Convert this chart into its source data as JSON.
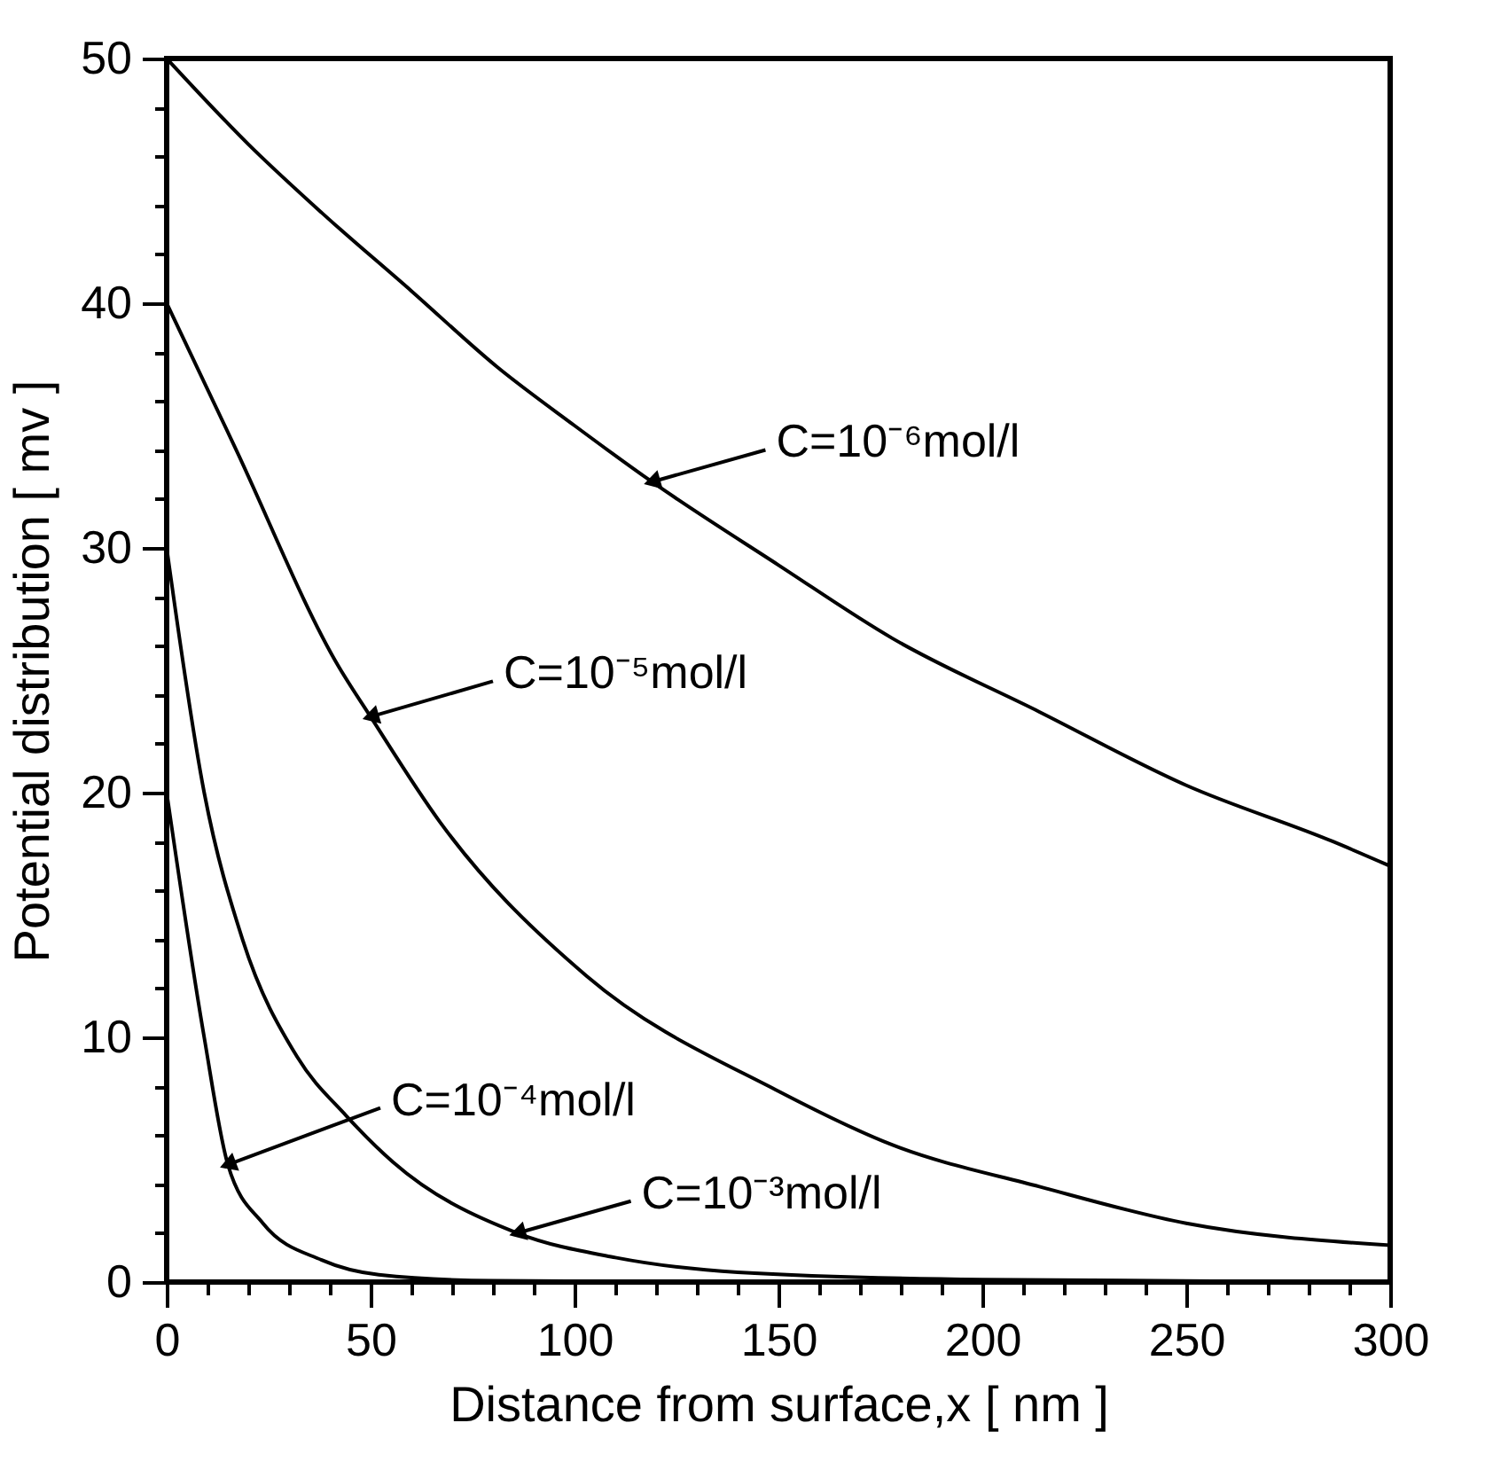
{
  "chart_data": {
    "type": "line",
    "xlabel": "Distance from surface,x [ nm ]",
    "ylabel": "Potential distribution [ mv ]",
    "xlim": [
      0,
      300
    ],
    "ylim": [
      0,
      50
    ],
    "xticks": [
      0,
      {
        "value": 10,
        "label": null
      },
      {
        "value": 20,
        "label": null
      },
      {
        "value": 30,
        "label": null
      },
      {
        "value": 40,
        "label": null
      },
      50,
      {
        "value": 60,
        "label": null
      },
      {
        "value": 70,
        "label": null
      },
      {
        "value": 80,
        "label": null
      },
      {
        "value": 90,
        "label": null
      },
      100,
      {
        "value": 110,
        "label": null
      },
      {
        "value": 120,
        "label": null
      },
      {
        "value": 130,
        "label": null
      },
      {
        "value": 140,
        "label": null
      },
      150,
      {
        "value": 160,
        "label": null
      },
      {
        "value": 170,
        "label": null
      },
      {
        "value": 180,
        "label": null
      },
      {
        "value": 190,
        "label": null
      },
      200,
      {
        "value": 210,
        "label": null
      },
      {
        "value": 220,
        "label": null
      },
      {
        "value": 230,
        "label": null
      },
      {
        "value": 240,
        "label": null
      },
      250,
      {
        "value": 260,
        "label": null
      },
      {
        "value": 270,
        "label": null
      },
      {
        "value": 280,
        "label": null
      },
      {
        "value": 290,
        "label": null
      },
      300
    ],
    "yticks": [
      0,
      {
        "value": 2,
        "label": null
      },
      {
        "value": 4,
        "label": null
      },
      {
        "value": 6,
        "label": null
      },
      {
        "value": 8,
        "label": null
      },
      10,
      {
        "value": 12,
        "label": null
      },
      {
        "value": 14,
        "label": null
      },
      {
        "value": 16,
        "label": null
      },
      {
        "value": 18,
        "label": null
      },
      20,
      {
        "value": 22,
        "label": null
      },
      {
        "value": 24,
        "label": null
      },
      {
        "value": 26,
        "label": null
      },
      {
        "value": 28,
        "label": null
      },
      30,
      {
        "value": 32,
        "label": null
      },
      {
        "value": 34,
        "label": null
      },
      {
        "value": 36,
        "label": null
      },
      {
        "value": 38,
        "label": null
      },
      40,
      {
        "value": 42,
        "label": null
      },
      {
        "value": 44,
        "label": null
      },
      {
        "value": 46,
        "label": null
      },
      {
        "value": 48,
        "label": null
      },
      50
    ],
    "grid": false,
    "marker": "none",
    "line_style": "solid",
    "series": [
      {
        "color": "#000000",
        "x": [
          0,
          20,
          38,
          60,
          81,
          100,
          119,
          150,
          178,
          214,
          250,
          286,
          300
        ],
        "values": [
          50,
          46.5,
          43.7,
          40.5,
          37.4,
          35.0,
          32.7,
          29.3,
          26.3,
          23.3,
          20.3,
          18.0,
          17.0
        ]
      },
      {
        "color": "#000000",
        "x": [
          0,
          16.5,
          42,
          50,
          67,
          103,
          150,
          178,
          214,
          250,
          300
        ],
        "values": [
          40,
          34.2,
          25.2,
          23.1,
          18.8,
          12.5,
          7.8,
          5.6,
          3.9,
          2.4,
          1.5
        ]
      },
      {
        "color": "#000000",
        "x": [
          0,
          9.2,
          18.6,
          32,
          44,
          55.5,
          86,
          110,
          140,
          200,
          300
        ],
        "values": [
          30,
          20,
          14,
          9.2,
          6.8,
          4.9,
          2.0,
          1.0,
          0.4,
          0.1,
          0
        ]
      },
      {
        "color": "#000000",
        "x": [
          0,
          9.2,
          15,
          23.6,
          38,
          52,
          80,
          150,
          300
        ],
        "values": [
          20,
          10,
          4.8,
          2.4,
          0.9,
          0.3,
          0.05,
          0,
          0
        ]
      }
    ],
    "annotations": [
      {
        "text": "C=10⁻⁶mol/l",
        "x": 119,
        "y": 32.7
      },
      {
        "text": "C=10⁻⁵mol/l",
        "x": 50,
        "y": 23.1
      },
      {
        "text": "C=10⁻⁴mol/l",
        "x": 15,
        "y": 4.8
      },
      {
        "text": "C=10⁻³mol/l",
        "x": 86,
        "y": 2.0
      }
    ]
  }
}
